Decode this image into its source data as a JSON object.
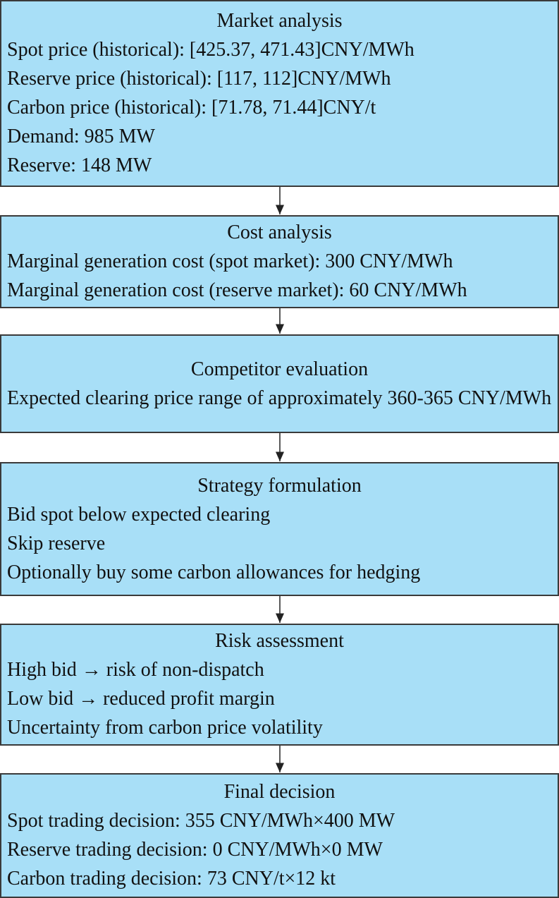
{
  "boxes": [
    {
      "title": "Market analysis",
      "lines": [
        "Spot price (historical): [425.37, 471.43]CNY/MWh",
        "Reserve price (historical): [117, 112]CNY/MWh",
        "Carbon price (historical): [71.78, 71.44]CNY/t",
        "Demand: 985 MW",
        "Reserve: 148 MW"
      ]
    },
    {
      "title": "Cost analysis",
      "lines": [
        "Marginal generation cost (spot market): 300 CNY/MWh",
        "Marginal generation cost (reserve market): 60 CNY/MWh"
      ]
    },
    {
      "title": "Competitor evaluation",
      "lines": [
        "Expected clearing price range of approximately 360-365 CNY/MWh"
      ]
    },
    {
      "title": "Strategy formulation",
      "lines": [
        "Bid spot below expected clearing",
        "Skip reserve",
        "Optionally buy some carbon allowances for hedging"
      ]
    },
    {
      "title": "Risk assessment",
      "lines": [
        "High bid → risk of non-dispatch",
        "Low bid → reduced profit margin",
        "Uncertainty from carbon price volatility"
      ]
    },
    {
      "title": "Final decision",
      "lines": [
        "Spot trading decision: 355 CNY/MWh×400 MW",
        "Reserve trading decision: 0 CNY/MWh×0 MW",
        "Carbon trading decision: 73 CNY/t×12 kt"
      ]
    }
  ]
}
